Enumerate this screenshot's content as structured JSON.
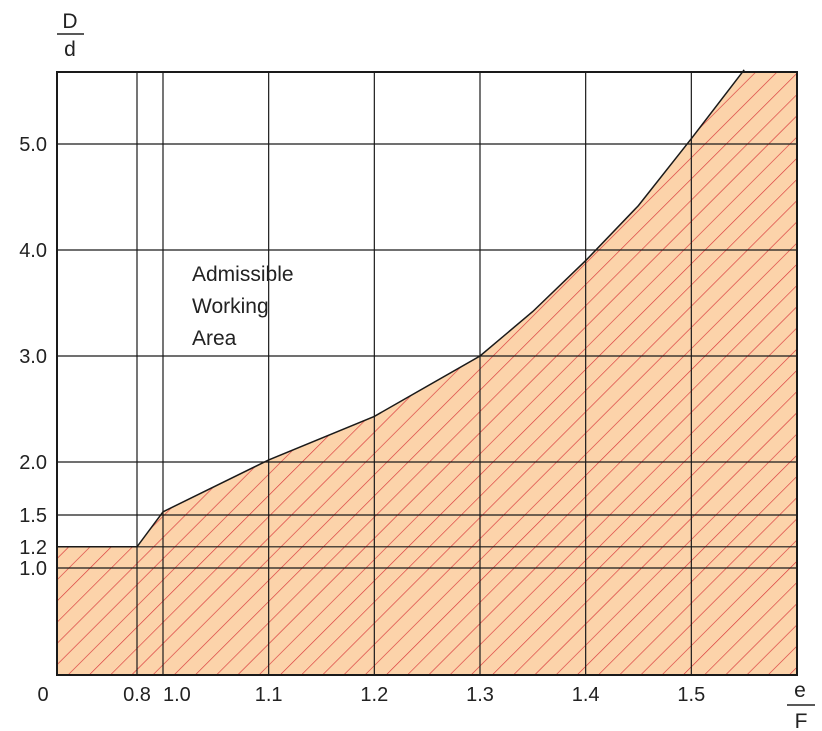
{
  "chart_data": {
    "type": "area",
    "title": "",
    "x_ticks": [
      {
        "value": 0,
        "label": "0"
      },
      {
        "value": 0.8,
        "label": "0.8"
      },
      {
        "value": 1.0,
        "label": "1.0"
      },
      {
        "value": 1.1,
        "label": "1.1"
      },
      {
        "value": 1.2,
        "label": "1.2"
      },
      {
        "value": 1.3,
        "label": "1.3"
      },
      {
        "value": 1.4,
        "label": "1.4"
      },
      {
        "value": 1.5,
        "label": "1.5"
      }
    ],
    "y_ticks": [
      {
        "value": 1.0,
        "label": "1.0"
      },
      {
        "value": 1.2,
        "label": "1.2"
      },
      {
        "value": 1.5,
        "label": "1.5"
      },
      {
        "value": 2.0,
        "label": "2.0"
      },
      {
        "value": 3.0,
        "label": "3.0"
      },
      {
        "value": 4.0,
        "label": "4.0"
      },
      {
        "value": 5.0,
        "label": "5.0"
      }
    ],
    "x_label": {
      "numerator": "e",
      "denominator": "F"
    },
    "y_label": {
      "numerator": "D",
      "denominator": "d"
    },
    "boundary": [
      {
        "x": 0,
        "y": 1.2
      },
      {
        "x": 0.8,
        "y": 1.2
      },
      {
        "x": 1.0,
        "y": 1.53
      },
      {
        "x": 1.1,
        "y": 2.02
      },
      {
        "x": 1.2,
        "y": 2.43
      },
      {
        "x": 1.3,
        "y": 3.0
      },
      {
        "x": 1.35,
        "y": 3.42
      },
      {
        "x": 1.4,
        "y": 3.9
      },
      {
        "x": 1.45,
        "y": 4.42
      },
      {
        "x": 1.5,
        "y": 5.05
      },
      {
        "x": 1.55,
        "y": 5.7
      }
    ],
    "annotation": [
      "Admissible",
      "Working",
      "Area"
    ],
    "colors": {
      "fill": "#fcd3aa",
      "hatch": "#d9383a",
      "grid": "#1a1a1a"
    }
  }
}
